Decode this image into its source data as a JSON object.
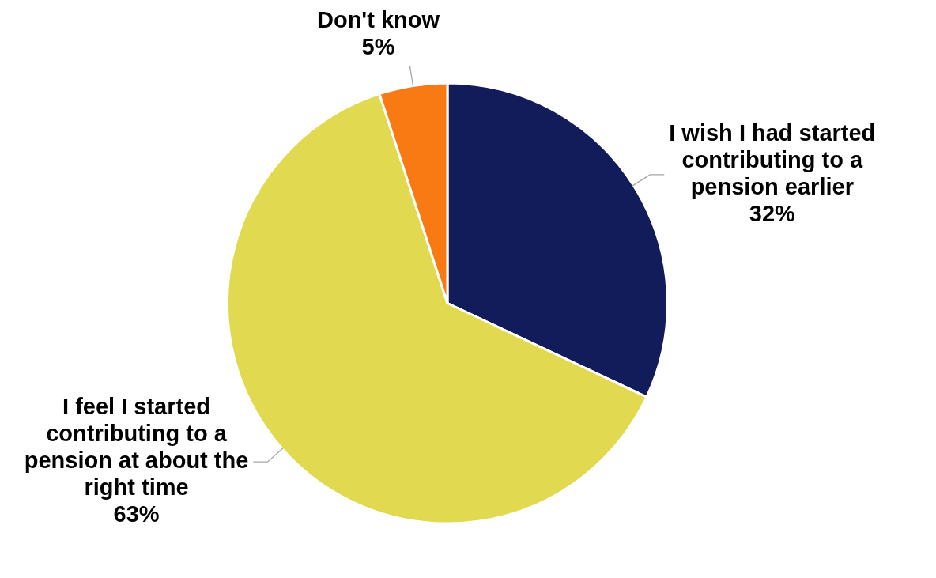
{
  "chart_data": {
    "type": "pie",
    "categories": [
      "I wish I had started contributing to a pension earlier",
      "I feel I started contributing to a pension at about the right time",
      "Don't know"
    ],
    "values": [
      32,
      63,
      5
    ],
    "colors": [
      "#131c5a",
      "#e1d94f",
      "#f97a12"
    ],
    "value_labels": [
      "32%",
      "63%",
      "5%"
    ],
    "legend": false
  }
}
